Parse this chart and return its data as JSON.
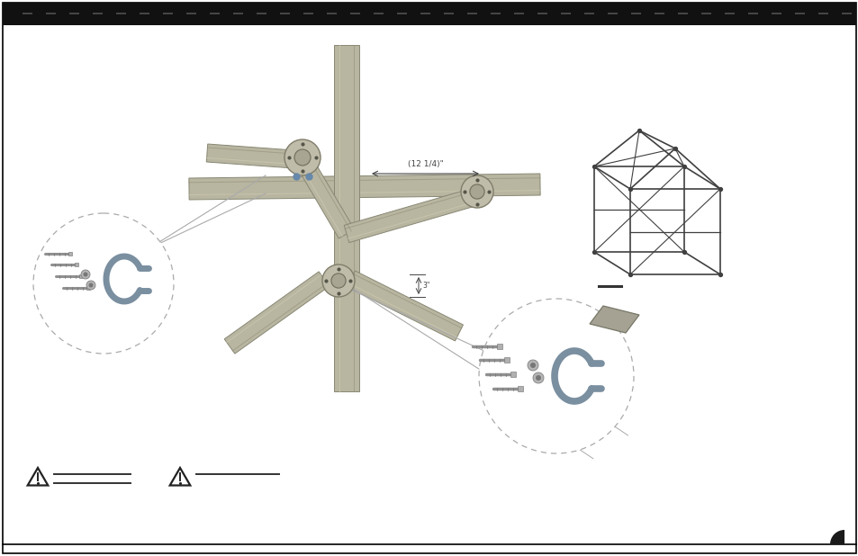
{
  "bg_color": "#ffffff",
  "header_color": "#111111",
  "border_color": "#000000",
  "corner_fill": "#1a1a1a",
  "pipe_fill": "#b8b5a0",
  "pipe_edge": "#888875",
  "pipe_highlight": "#d0cdb8",
  "pipe_shadow": "#9a9785",
  "clamp_color": "#8899aa",
  "screw_color": "#909090",
  "warning_color": "#222222",
  "frame_color": "#404040",
  "detail_circle_edge": "#aaaaaa",
  "leader_color": "#888888",
  "dim_color": "#444444",
  "header_dash_color": "#555555"
}
